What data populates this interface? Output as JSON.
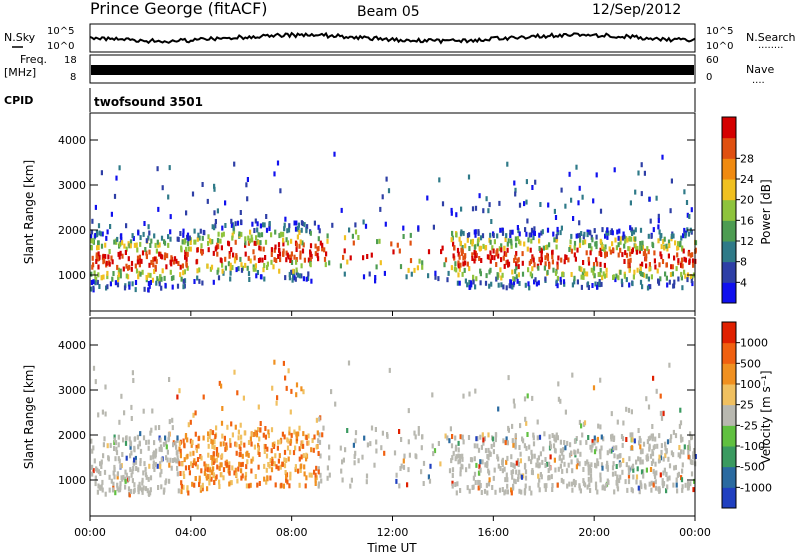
{
  "header": {
    "station": "Prince George (fitACF)",
    "beam": "Beam 05",
    "date": "12/Sep/2012"
  },
  "labels": {
    "nsky": "N.Sky",
    "nsearch": "N.Search",
    "freq": "Freq.",
    "freq_unit": "[MHz]",
    "nave": "Nave",
    "cpid": "CPID",
    "cpid_value": "twofsound 3501",
    "dots_a": "........",
    "dots_b": "...."
  },
  "top_axes": {
    "noise_left_ticks": [
      "10^5",
      "10^0"
    ],
    "noise_right_ticks": [
      "10^5",
      "10^0"
    ],
    "freq_left_ticks": [
      "18",
      "8"
    ],
    "freq_right_ticks": [
      "60",
      "0"
    ]
  },
  "chart_data": [
    {
      "type": "heatmap",
      "panel": "power",
      "ylabel": "Slant Range [km]",
      "yticks": [
        1000,
        2000,
        3000,
        4000
      ],
      "ylim": [
        200,
        4600
      ],
      "xlim": [
        0,
        24
      ],
      "colorbar": {
        "label": "Power [dB]",
        "ticks": [
          "4",
          "8",
          "12",
          "16",
          "20",
          "24",
          "28"
        ],
        "colors": [
          "#1010ee",
          "#2e3fa6",
          "#2f7a88",
          "#4d9c52",
          "#8ec33c",
          "#f0c020",
          "#f08a10",
          "#e05010",
          "#d40000"
        ]
      }
    },
    {
      "type": "heatmap",
      "panel": "velocity",
      "ylabel": "Slant Range [km]",
      "yticks": [
        1000,
        2000,
        3000,
        4000
      ],
      "ylim": [
        200,
        4600
      ],
      "xlim": [
        0,
        24
      ],
      "xticks": [
        "00:00",
        "04:00",
        "08:00",
        "12:00",
        "16:00",
        "20:00",
        "00:00"
      ],
      "xlabel": "Time UT",
      "colorbar": {
        "label": "Velocity [m s⁻¹]",
        "ticks": [
          "1000",
          "500",
          "100",
          "25",
          "-25",
          "-100",
          "-500",
          "-1000"
        ],
        "colors": [
          "#2040c0",
          "#2a6aa0",
          "#3a9a60",
          "#60c040",
          "#b8b8b0",
          "#f0c060",
          "#f09020",
          "#f06010",
          "#e02000"
        ]
      }
    }
  ]
}
